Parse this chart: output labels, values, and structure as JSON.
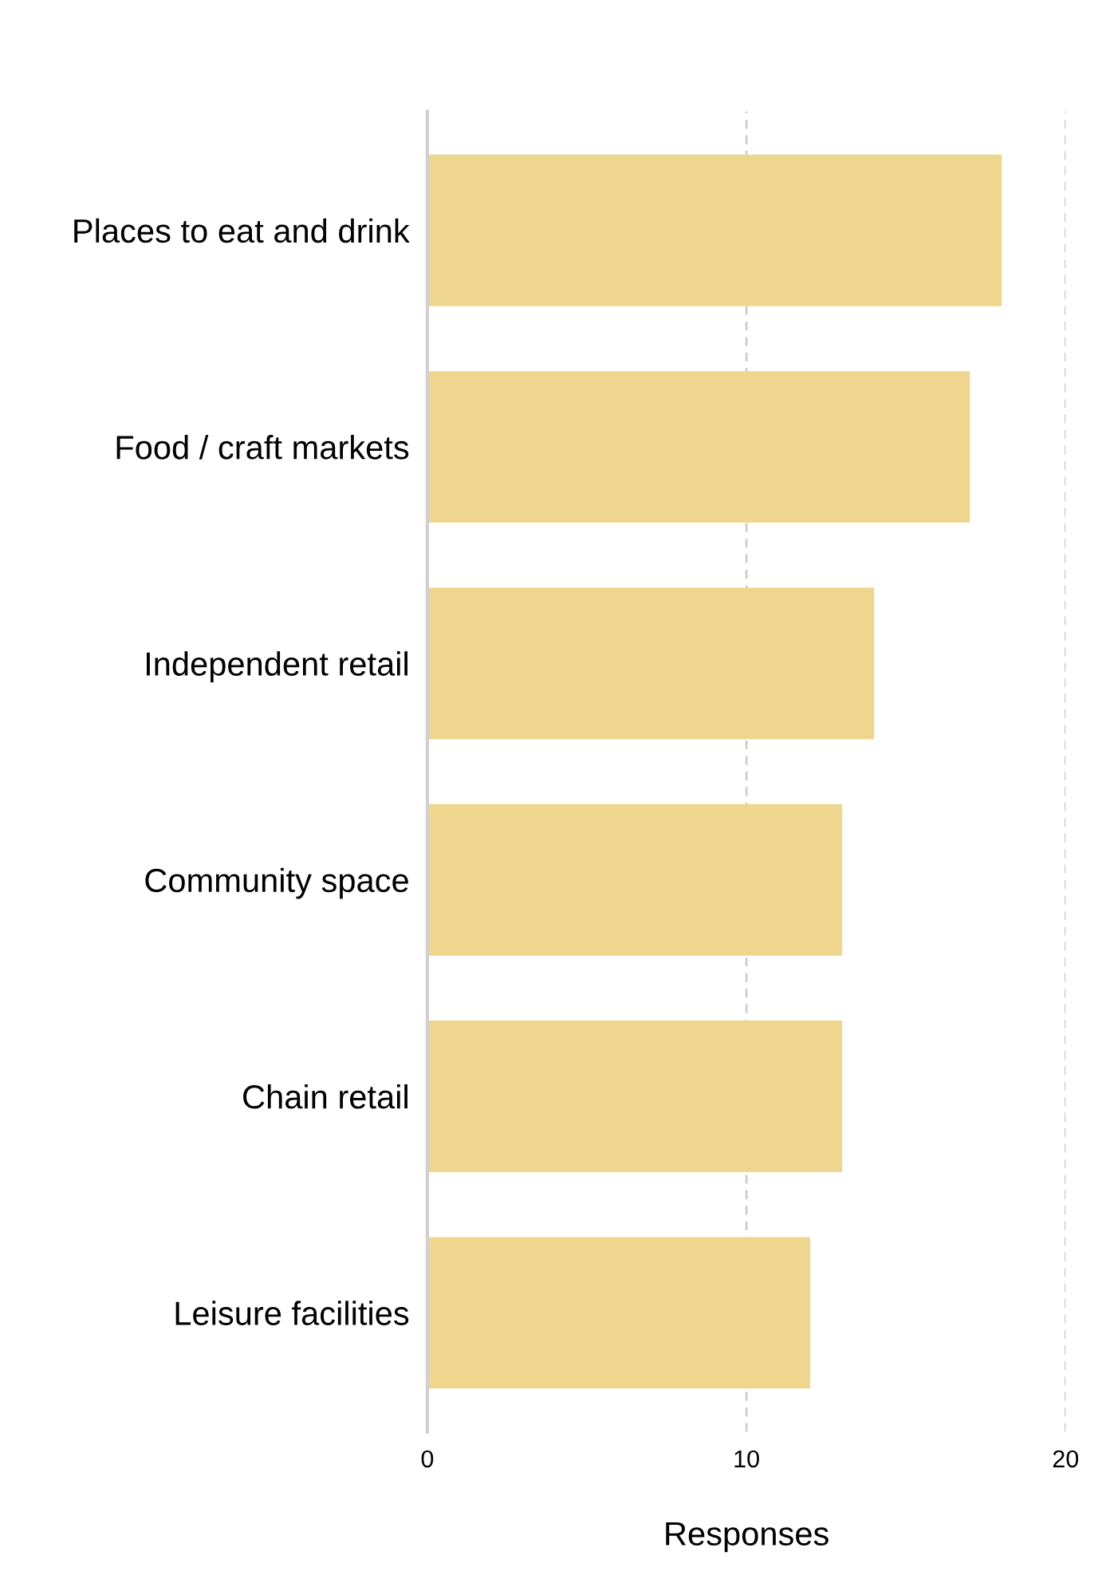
{
  "chart_data": {
    "type": "bar",
    "orientation": "horizontal",
    "xlabel": "Responses",
    "categories": [
      "Places to eat and drink",
      "Food / craft markets",
      "Independent retail",
      "Community space",
      "Chain retail",
      "Leisure facilities"
    ],
    "values": [
      18,
      17,
      14,
      13,
      13,
      12
    ],
    "color": "#efd68f",
    "xlim": [
      0,
      20
    ],
    "xticks": [
      0,
      10,
      20
    ],
    "grid": "x",
    "legend": false
  }
}
